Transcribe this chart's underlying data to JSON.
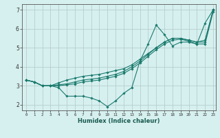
{
  "xlabel": "Humidex (Indice chaleur)",
  "bg_color": "#d6f0ef",
  "line_color": "#1a7a6e",
  "grid_color": "#b0c8c8",
  "xlim": [
    -0.5,
    23.3
  ],
  "ylim": [
    1.7,
    7.3
  ],
  "xticks": [
    0,
    1,
    2,
    3,
    4,
    5,
    6,
    7,
    8,
    9,
    10,
    11,
    12,
    13,
    14,
    15,
    16,
    17,
    18,
    19,
    20,
    21,
    22,
    23
  ],
  "yticks": [
    2,
    3,
    4,
    5,
    6,
    7
  ],
  "series": [
    {
      "x": [
        0,
        1,
        2,
        3,
        4,
        5,
        6,
        7,
        8,
        9,
        10,
        11,
        12,
        13,
        14,
        15,
        16,
        17,
        18,
        19,
        20,
        21,
        22,
        23
      ],
      "y": [
        3.3,
        3.2,
        3.0,
        3.0,
        2.9,
        2.45,
        2.45,
        2.45,
        2.35,
        2.2,
        1.9,
        2.2,
        2.6,
        2.9,
        4.3,
        5.2,
        6.2,
        5.7,
        5.1,
        5.3,
        5.3,
        5.2,
        6.3,
        7.0
      ]
    },
    {
      "x": [
        0,
        1,
        2,
        3,
        4,
        5,
        6,
        7,
        8,
        9,
        10,
        11,
        12,
        13,
        14,
        15,
        16,
        17,
        18,
        19,
        20,
        21,
        22,
        23
      ],
      "y": [
        3.3,
        3.2,
        3.0,
        3.0,
        3.15,
        3.3,
        3.4,
        3.5,
        3.55,
        3.6,
        3.7,
        3.8,
        3.9,
        4.1,
        4.4,
        4.7,
        5.0,
        5.3,
        5.5,
        5.5,
        5.4,
        5.3,
        5.4,
        7.0
      ]
    },
    {
      "x": [
        0,
        1,
        2,
        3,
        4,
        5,
        6,
        7,
        8,
        9,
        10,
        11,
        12,
        13,
        14,
        15,
        16,
        17,
        18,
        19,
        20,
        21,
        22,
        23
      ],
      "y": [
        3.3,
        3.2,
        3.0,
        3.0,
        3.05,
        3.1,
        3.2,
        3.3,
        3.35,
        3.4,
        3.5,
        3.6,
        3.75,
        4.0,
        4.3,
        4.65,
        5.0,
        5.3,
        5.5,
        5.5,
        5.4,
        5.3,
        5.3,
        7.0
      ]
    },
    {
      "x": [
        0,
        1,
        2,
        3,
        4,
        5,
        6,
        7,
        8,
        9,
        10,
        11,
        12,
        13,
        14,
        15,
        16,
        17,
        18,
        19,
        20,
        21,
        22,
        23
      ],
      "y": [
        3.3,
        3.2,
        3.0,
        3.0,
        3.0,
        3.05,
        3.1,
        3.2,
        3.25,
        3.3,
        3.4,
        3.5,
        3.65,
        3.9,
        4.2,
        4.55,
        4.9,
        5.2,
        5.4,
        5.45,
        5.35,
        5.2,
        5.2,
        6.9
      ]
    }
  ]
}
